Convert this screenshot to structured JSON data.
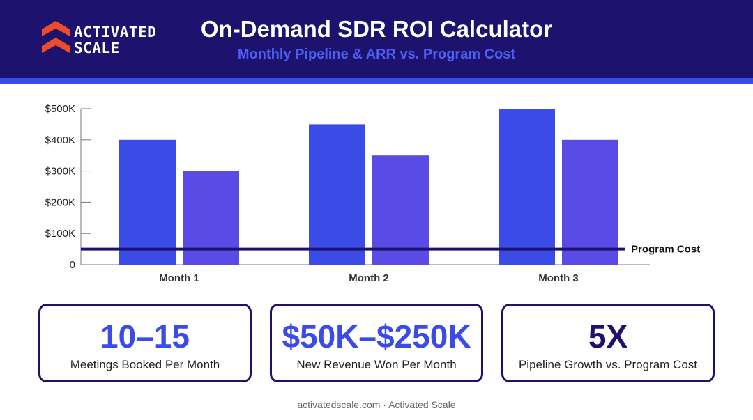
{
  "brand": {
    "name_line1": "ACTIVATED",
    "name_line2": "SCALE",
    "colors": {
      "header_bg": "#1d136f",
      "accent": "#3b4be8",
      "pipeline_bar": "#3b4be8",
      "arr_bar": "#5b4be6",
      "program_cost_line": "#1d136f",
      "logo": "#f04a2a"
    }
  },
  "header": {
    "title": "On-Demand SDR ROI Calculator",
    "subtitle": "Monthly Pipeline & ARR vs. Program Cost"
  },
  "chart_data": {
    "type": "bar",
    "categories": [
      "Month 1",
      "Month 2",
      "Month 3"
    ],
    "series": [
      {
        "values": [
          400000,
          450000,
          500000
        ]
      },
      {
        "values": [
          300000,
          350000,
          400000
        ]
      }
    ],
    "reference_line": {
      "label": "Program Cost",
      "value": 50000
    },
    "ylim": [
      0,
      500000
    ],
    "yticks": [
      0,
      100000,
      200000,
      300000,
      400000,
      500000
    ],
    "ytick_labels": [
      "0",
      "$100K",
      "$200K",
      "$300K",
      "$400K",
      "$500K"
    ],
    "xlabel": "",
    "ylabel": "",
    "grid": false,
    "legend": "none"
  },
  "stats": [
    {
      "value": "10–15",
      "label": "Meetings Booked Per Month",
      "color": "#3b4be8"
    },
    {
      "value": "$50K–$250K",
      "label": "New Revenue Won Per Month",
      "color": "#3b4be8"
    },
    {
      "value": "5X",
      "label": "Pipeline Growth vs. Program Cost",
      "color": "#1d136f"
    }
  ],
  "footer": {
    "text": "activatedscale.com · Activated Scale"
  }
}
